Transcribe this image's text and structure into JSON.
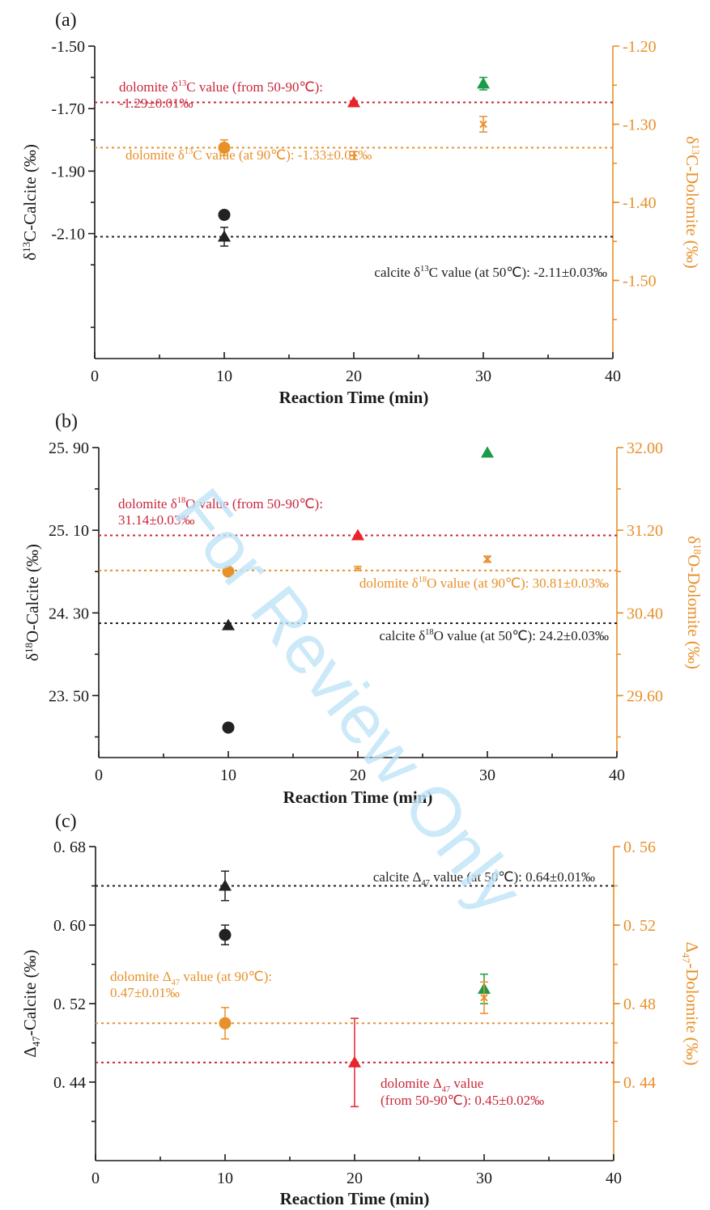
{
  "watermark": "For Review Only",
  "chart_data": [
    {
      "type": "scatter",
      "panel_label": "(a)",
      "xlabel": "Reaction Time (min)",
      "xlim": [
        0,
        40
      ],
      "xticks": [
        0,
        10,
        20,
        30,
        40
      ],
      "ylabel_left": "δ13C-Calcite (‰)",
      "ylabel_right": "δ13C-Dolomite (‰)",
      "ylim_left": [
        -2.5,
        -1.5
      ],
      "ylim_right": [
        -1.6,
        -1.2
      ],
      "yticks_left": [
        "-1.50",
        "-1.70",
        "-1.90",
        "-2.10"
      ],
      "yticks_left_values": [
        -1.5,
        -1.7,
        -1.9,
        -2.1
      ],
      "yticks_right": [
        "-1.20",
        "-1.30",
        "-1.40",
        "-1.50"
      ],
      "yticks_right_values": [
        -1.2,
        -1.3,
        -1.4,
        -1.5
      ],
      "series": [
        {
          "marker": "circle",
          "color": "#222222",
          "axis": "left",
          "points": [
            {
              "x": 10,
              "y": -2.04,
              "err": 0.01
            }
          ]
        },
        {
          "marker": "triangle",
          "color": "#222222",
          "axis": "left",
          "points": [
            {
              "x": 10,
              "y": -2.11,
              "err": 0.03
            }
          ]
        },
        {
          "marker": "circle",
          "color": "#e8902a",
          "axis": "right",
          "points": [
            {
              "x": 10,
              "y": -1.33,
              "err": 0.01
            }
          ]
        },
        {
          "marker": "triangle",
          "color": "#e8232c",
          "axis": "left",
          "points": [
            {
              "x": 20,
              "y": -1.68,
              "err": 0.005
            }
          ]
        },
        {
          "marker": "bar",
          "color": "#e8902a",
          "axis": "right",
          "points": [
            {
              "x": 20,
              "y": -1.34,
              "err": 0.005
            }
          ]
        },
        {
          "marker": "triangle",
          "color": "#1c9a4a",
          "axis": "left",
          "points": [
            {
              "x": 30,
              "y": -1.62,
              "err": 0.02
            }
          ]
        },
        {
          "marker": "cross",
          "color": "#e8902a",
          "axis": "right",
          "points": [
            {
              "x": 30,
              "y": -1.3,
              "err": 0.01
            }
          ]
        }
      ],
      "reference_lines": [
        {
          "axis": "left",
          "y": -1.68,
          "color": "#c8273a",
          "label_lines": [
            "dolomite δ13C value (from 50-90℃):",
            "-1.29±0.01‰"
          ]
        },
        {
          "axis": "right",
          "y": -1.33,
          "color": "#e8902a",
          "label_lines": [
            "dolomite δ13C value (at 90℃): -1.33±0.01‰"
          ]
        },
        {
          "axis": "left",
          "y": -2.11,
          "color": "#222222",
          "label_lines": [
            "calcite δ13C value (at 50℃): -2.11±0.03‰"
          ]
        }
      ]
    },
    {
      "type": "scatter",
      "panel_label": "(b)",
      "xlabel": "Reaction Time (min)",
      "xlim": [
        0,
        40
      ],
      "xticks": [
        0,
        10,
        20,
        30,
        40
      ],
      "ylabel_left": "δ18O-Calcite (‰)",
      "ylabel_right": "δ18O-Dolomite (‰)",
      "ylim_left": [
        22.9,
        25.9
      ],
      "ylim_right": [
        29.0,
        32.0
      ],
      "yticks_left": [
        "25. 90",
        "25. 10",
        "24. 30",
        "23. 50"
      ],
      "yticks_left_values": [
        25.9,
        25.1,
        24.3,
        23.5
      ],
      "yticks_right": [
        "32.00",
        "31.20",
        "30.40",
        "29.60"
      ],
      "yticks_right_values": [
        32.0,
        31.2,
        30.4,
        29.6
      ],
      "series": [
        {
          "marker": "circle",
          "color": "#222222",
          "axis": "left",
          "points": [
            {
              "x": 10,
              "y": 23.19,
              "err": 0.0
            }
          ]
        },
        {
          "marker": "triangle",
          "color": "#222222",
          "axis": "left",
          "points": [
            {
              "x": 10,
              "y": 24.18,
              "err": 0.0
            }
          ]
        },
        {
          "marker": "circle",
          "color": "#e8902a",
          "axis": "right",
          "points": [
            {
              "x": 10,
              "y": 30.8,
              "err": 0.0
            }
          ]
        },
        {
          "marker": "triangle",
          "color": "#e8232c",
          "axis": "left",
          "points": [
            {
              "x": 20,
              "y": 25.05,
              "err": 0.0
            }
          ]
        },
        {
          "marker": "bar",
          "color": "#e8902a",
          "axis": "right",
          "points": [
            {
              "x": 20,
              "y": 30.83,
              "err": 0.02
            }
          ]
        },
        {
          "marker": "triangle",
          "color": "#1c9a4a",
          "axis": "left",
          "points": [
            {
              "x": 30,
              "y": 25.85,
              "err": 0.0
            }
          ]
        },
        {
          "marker": "cross",
          "color": "#e8902a",
          "axis": "right",
          "points": [
            {
              "x": 30,
              "y": 30.92,
              "err": 0.03
            }
          ]
        }
      ],
      "reference_lines": [
        {
          "axis": "left",
          "y": 25.05,
          "color": "#c8273a",
          "label_lines": [
            "dolomite δ18O value (from 50-90℃):",
            "31.14±0.03‰"
          ]
        },
        {
          "axis": "right",
          "y": 30.81,
          "color": "#e8902a",
          "label_lines": [
            "dolomite δ18O value (at 90℃): 30.81±0.03‰"
          ]
        },
        {
          "axis": "left",
          "y": 24.2,
          "color": "#222222",
          "label_lines": [
            "calcite δ18O value (at 50℃): 24.2±0.03‰"
          ]
        }
      ]
    },
    {
      "type": "scatter",
      "panel_label": "(c)",
      "xlabel": "Reaction Time (min)",
      "xlim": [
        0,
        40
      ],
      "xticks": [
        0,
        10,
        20,
        30,
        40
      ],
      "ylabel_left": "Δ47-Calcite (‰)",
      "ylabel_right": "Δ47-Dolomite (‰)",
      "ylim_left": [
        0.36,
        0.68
      ],
      "ylim_right": [
        0.4,
        0.56
      ],
      "yticks_left": [
        "0. 68",
        "0. 60",
        "0. 52",
        "0. 44"
      ],
      "yticks_left_values": [
        0.68,
        0.6,
        0.52,
        0.44
      ],
      "yticks_right": [
        "0. 56",
        "0. 52",
        "0. 48",
        "0. 44"
      ],
      "yticks_right_values": [
        0.56,
        0.52,
        0.48,
        0.44
      ],
      "series": [
        {
          "marker": "circle",
          "color": "#222222",
          "axis": "left",
          "points": [
            {
              "x": 10,
              "y": 0.59,
              "err": 0.01
            }
          ]
        },
        {
          "marker": "triangle",
          "color": "#222222",
          "axis": "left",
          "points": [
            {
              "x": 10,
              "y": 0.64,
              "err": 0.015
            }
          ]
        },
        {
          "marker": "circle",
          "color": "#e8902a",
          "axis": "right",
          "points": [
            {
              "x": 10,
              "y": 0.47,
              "err": 0.008
            }
          ]
        },
        {
          "marker": "triangle",
          "color": "#e8232c",
          "axis": "left",
          "points": [
            {
              "x": 20,
              "y": 0.46,
              "err": 0.045
            }
          ]
        },
        {
          "marker": "triangle",
          "color": "#1c9a4a",
          "axis": "left",
          "points": [
            {
              "x": 30,
              "y": 0.535,
              "err": 0.015
            }
          ]
        },
        {
          "marker": "cross",
          "color": "#e8902a",
          "axis": "right",
          "points": [
            {
              "x": 30,
              "y": 0.483,
              "err": 0.008
            }
          ]
        }
      ],
      "reference_lines": [
        {
          "axis": "left",
          "y": 0.64,
          "color": "#222222",
          "label_lines": [
            "calcite Δ47 value (at 50℃): 0.64±0.01‰"
          ]
        },
        {
          "axis": "right",
          "y": 0.47,
          "color": "#e8902a",
          "label_lines": [
            "dolomite Δ47 value (at 90℃):",
            "0.47±0.01‰"
          ]
        },
        {
          "axis": "left",
          "y": 0.46,
          "color": "#c8273a",
          "label_lines": [
            "dolomite Δ47 value",
            "(from 50-90℃): 0.45±0.02‰"
          ]
        }
      ]
    }
  ]
}
